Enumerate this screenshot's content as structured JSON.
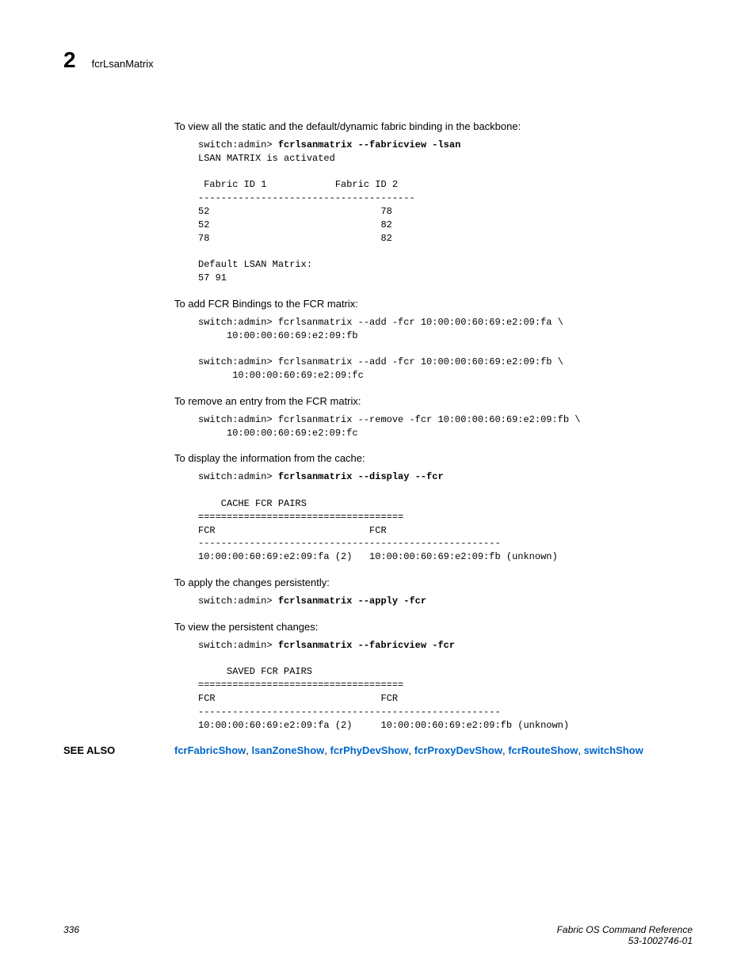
{
  "header": {
    "chapter": "2",
    "title": "fcrLsanMatrix"
  },
  "sections": [
    {
      "type": "body",
      "text": "To view all the static and the default/dynamic fabric binding in the backbone:"
    },
    {
      "type": "code",
      "lines": [
        {
          "pre": "switch:admin> ",
          "bold": "fcrlsanmatrix --fabricview -lsan"
        },
        {
          "plain": "LSAN MATRIX is activated"
        },
        {
          "plain": ""
        },
        {
          "plain": " Fabric ID 1            Fabric ID 2"
        },
        {
          "plain": "--------------------------------------"
        },
        {
          "plain": "52                              78"
        },
        {
          "plain": "52                              82"
        },
        {
          "plain": "78                              82"
        },
        {
          "plain": ""
        },
        {
          "plain": "Default LSAN Matrix:"
        },
        {
          "plain": "57 91"
        }
      ]
    },
    {
      "type": "body",
      "text": "To add FCR Bindings to the FCR matrix:"
    },
    {
      "type": "code",
      "lines": [
        {
          "plain": "switch:admin> fcrlsanmatrix --add -fcr 10:00:00:60:69:e2:09:fa \\"
        },
        {
          "plain": "     10:00:00:60:69:e2:09:fb"
        },
        {
          "plain": ""
        },
        {
          "plain": "switch:admin> fcrlsanmatrix --add -fcr 10:00:00:60:69:e2:09:fb \\"
        },
        {
          "plain": "      10:00:00:60:69:e2:09:fc"
        }
      ]
    },
    {
      "type": "body",
      "text": "To remove an entry from the FCR matrix:"
    },
    {
      "type": "code",
      "lines": [
        {
          "plain": "switch:admin> fcrlsanmatrix --remove -fcr 10:00:00:60:69:e2:09:fb \\"
        },
        {
          "plain": "     10:00:00:60:69:e2:09:fc"
        }
      ]
    },
    {
      "type": "body",
      "text": "To display the information from the cache:"
    },
    {
      "type": "code",
      "lines": [
        {
          "pre": "switch:admin> ",
          "bold": "fcrlsanmatrix --display --fcr"
        },
        {
          "plain": ""
        },
        {
          "plain": "    CACHE FCR PAIRS"
        },
        {
          "plain": "===================================="
        },
        {
          "plain": "FCR                           FCR"
        },
        {
          "plain": "-----------------------------------------------------"
        },
        {
          "plain": "10:00:00:60:69:e2:09:fa (2)   10:00:00:60:69:e2:09:fb (unknown)"
        }
      ]
    },
    {
      "type": "body",
      "text": "To apply the changes persistently:"
    },
    {
      "type": "code",
      "lines": [
        {
          "pre": "switch:admin> ",
          "bold": "fcrlsanmatrix --apply -fcr"
        }
      ]
    },
    {
      "type": "body",
      "text": "To view the persistent changes:"
    },
    {
      "type": "code",
      "lines": [
        {
          "pre": "switch:admin> ",
          "bold": "fcrlsanmatrix --fabricview -fcr"
        },
        {
          "plain": ""
        },
        {
          "plain": "     SAVED FCR PAIRS"
        },
        {
          "plain": "===================================="
        },
        {
          "plain": "FCR                             FCR"
        },
        {
          "plain": "-----------------------------------------------------"
        },
        {
          "plain": "10:00:00:60:69:e2:09:fa (2)     10:00:00:60:69:e2:09:fb (unknown)"
        }
      ]
    }
  ],
  "see_also": {
    "label": "SEE ALSO",
    "links": [
      "fcrFabricShow",
      "lsanZoneShow",
      "fcrPhyDevShow",
      "fcrProxyDevShow",
      "fcrRouteShow",
      "switchShow"
    ]
  },
  "footer": {
    "page": "336",
    "doc_title": "Fabric OS Command Reference",
    "doc_id": "53-1002746-01"
  }
}
